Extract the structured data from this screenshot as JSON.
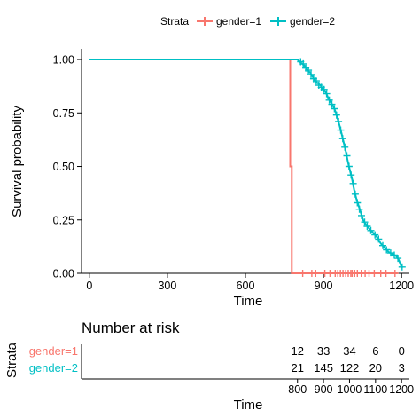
{
  "legend": {
    "title": "Strata",
    "items": [
      {
        "label": "gender=1",
        "color": "#F8766D"
      },
      {
        "label": "gender=2",
        "color": "#00BFC4"
      }
    ],
    "placement": "top"
  },
  "chart_data": [
    {
      "type": "line",
      "subtype": "kaplan-meier step curve with censor marks",
      "xlabel": "Time",
      "ylabel": "Survival probability",
      "xlim": [
        -30,
        1230
      ],
      "ylim": [
        0,
        1.05
      ],
      "xticks": [
        0,
        300,
        600,
        900,
        1200
      ],
      "xtick_labels": [
        "0",
        "300",
        "600",
        "900",
        "1200"
      ],
      "yticks": [
        0,
        0.25,
        0.5,
        0.75,
        1.0
      ],
      "ytick_labels": [
        "0.00",
        "0.25",
        "0.50",
        "0.75",
        "1.00"
      ],
      "grid": false,
      "series": [
        {
          "name": "gender=1",
          "color": "#F8766D",
          "steps": [
            [
              0,
              1.0
            ],
            [
              772,
              1.0
            ],
            [
              772,
              0.5
            ],
            [
              778,
              0.5
            ],
            [
              778,
              0.0
            ],
            [
              1185,
              0.0
            ]
          ],
          "censor": [
            [
              820,
              0.0
            ],
            [
              855,
              0.0
            ],
            [
              870,
              0.0
            ],
            [
              905,
              0.0
            ],
            [
              925,
              0.0
            ],
            [
              945,
              0.0
            ],
            [
              955,
              0.0
            ],
            [
              965,
              0.0
            ],
            [
              975,
              0.0
            ],
            [
              985,
              0.0
            ],
            [
              995,
              0.0
            ],
            [
              1005,
              0.0
            ],
            [
              1010,
              0.0
            ],
            [
              1020,
              0.0
            ],
            [
              1030,
              0.0
            ],
            [
              1045,
              0.0
            ],
            [
              1060,
              0.0
            ],
            [
              1075,
              0.0
            ],
            [
              1095,
              0.0
            ],
            [
              1120,
              0.0
            ],
            [
              1140,
              0.0
            ],
            [
              1175,
              0.0
            ]
          ]
        },
        {
          "name": "gender=2",
          "color": "#00BFC4",
          "steps": [
            [
              0,
              1.0
            ],
            [
              800,
              1.0
            ],
            [
              808,
              0.99
            ],
            [
              818,
              0.98
            ],
            [
              828,
              0.97
            ],
            [
              838,
              0.95
            ],
            [
              848,
              0.94
            ],
            [
              858,
              0.92
            ],
            [
              868,
              0.9
            ],
            [
              878,
              0.89
            ],
            [
              888,
              0.88
            ],
            [
              898,
              0.86
            ],
            [
              908,
              0.85
            ],
            [
              918,
              0.82
            ],
            [
              928,
              0.8
            ],
            [
              938,
              0.78
            ],
            [
              948,
              0.75
            ],
            [
              955,
              0.72
            ],
            [
              962,
              0.69
            ],
            [
              970,
              0.65
            ],
            [
              978,
              0.61
            ],
            [
              986,
              0.57
            ],
            [
              994,
              0.52
            ],
            [
              1002,
              0.48
            ],
            [
              1010,
              0.44
            ],
            [
              1018,
              0.39
            ],
            [
              1026,
              0.35
            ],
            [
              1034,
              0.32
            ],
            [
              1042,
              0.29
            ],
            [
              1052,
              0.25
            ],
            [
              1062,
              0.23
            ],
            [
              1075,
              0.21
            ],
            [
              1090,
              0.19
            ],
            [
              1105,
              0.17
            ],
            [
              1120,
              0.14
            ],
            [
              1135,
              0.12
            ],
            [
              1150,
              0.1
            ],
            [
              1165,
              0.09
            ],
            [
              1180,
              0.08
            ],
            [
              1190,
              0.06
            ],
            [
              1200,
              0.03
            ],
            [
              1205,
              0.03
            ]
          ],
          "censor": [
            [
              812,
              0.99
            ],
            [
              822,
              0.98
            ],
            [
              832,
              0.96
            ],
            [
              842,
              0.95
            ],
            [
              852,
              0.93
            ],
            [
              862,
              0.91
            ],
            [
              872,
              0.9
            ],
            [
              882,
              0.88
            ],
            [
              892,
              0.87
            ],
            [
              902,
              0.86
            ],
            [
              912,
              0.84
            ],
            [
              922,
              0.81
            ],
            [
              932,
              0.79
            ],
            [
              942,
              0.77
            ],
            [
              950,
              0.74
            ],
            [
              958,
              0.71
            ],
            [
              966,
              0.67
            ],
            [
              974,
              0.63
            ],
            [
              982,
              0.59
            ],
            [
              990,
              0.55
            ],
            [
              998,
              0.5
            ],
            [
              1006,
              0.46
            ],
            [
              1014,
              0.42
            ],
            [
              1022,
              0.37
            ],
            [
              1030,
              0.33
            ],
            [
              1038,
              0.3
            ],
            [
              1046,
              0.27
            ],
            [
              1058,
              0.24
            ],
            [
              1068,
              0.22
            ],
            [
              1082,
              0.2
            ],
            [
              1098,
              0.18
            ],
            [
              1112,
              0.16
            ],
            [
              1128,
              0.13
            ],
            [
              1142,
              0.11
            ],
            [
              1158,
              0.095
            ],
            [
              1172,
              0.085
            ],
            [
              1186,
              0.07
            ],
            [
              1202,
              0.03
            ]
          ]
        }
      ]
    },
    {
      "type": "table",
      "title": "Number at risk",
      "ylabel": "Strata",
      "xlabel": "Time",
      "x": [
        800,
        900,
        1000,
        1100,
        1200
      ],
      "xtick_labels": [
        "800",
        "900",
        "1000",
        "1100",
        "1200"
      ],
      "rows": [
        {
          "label": "gender=1",
          "color": "#F8766D",
          "values": [
            "12",
            "33",
            "34",
            "6",
            "0"
          ]
        },
        {
          "label": "gender=2",
          "color": "#00BFC4",
          "values": [
            "21",
            "145",
            "122",
            "20",
            "3"
          ]
        }
      ]
    }
  ]
}
